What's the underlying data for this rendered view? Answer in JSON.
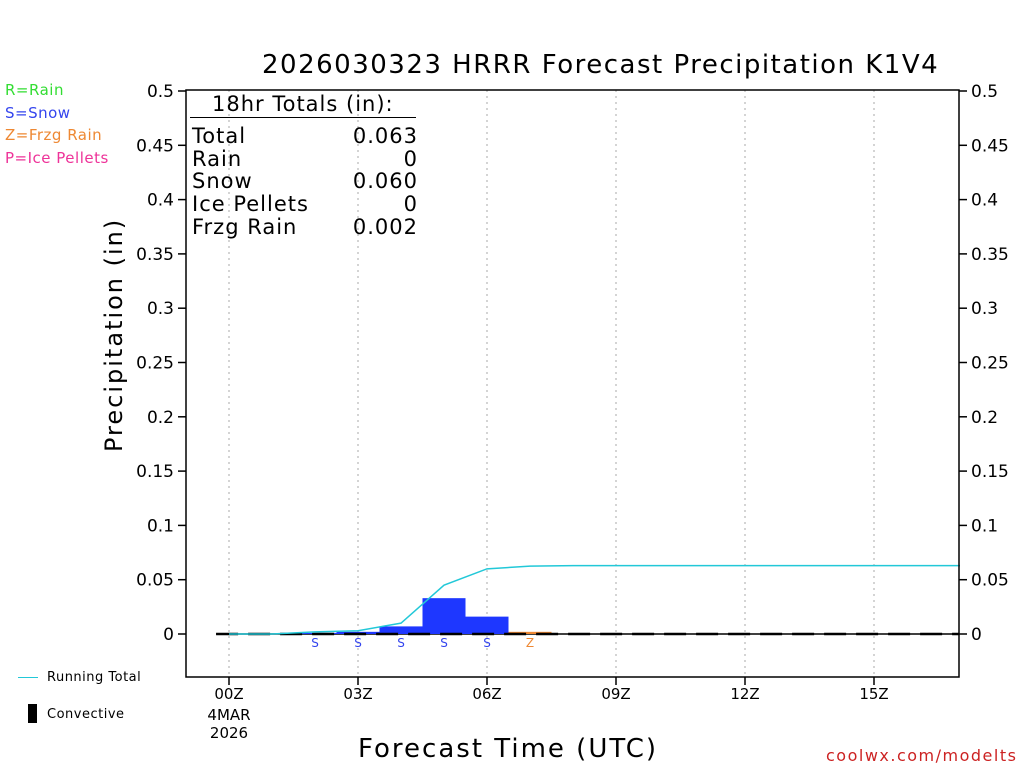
{
  "title": "2026030323 HRRR Forecast Precipitation K1V4",
  "ylabel": "Precipitation (in)",
  "xlabel": "Forecast Time (UTC)",
  "watermark": "coolwx.com/modelts",
  "ptype_legend": [
    {
      "label": "R=Rain",
      "color": "#33dd33"
    },
    {
      "label": "S=Snow",
      "color": "#3344ee"
    },
    {
      "label": "Z=Frzg Rain",
      "color": "#ee8833"
    },
    {
      "label": "P=Ice Pellets",
      "color": "#ee3399"
    }
  ],
  "bottom_legend": {
    "running_total": "Running Total",
    "convective": "Convective",
    "running_total_color": "#22c8d8",
    "convective_color": "#000000"
  },
  "totals": {
    "header": "18hr Totals (in):",
    "rows": [
      {
        "label": "Total",
        "value": "0.063"
      },
      {
        "label": "Rain",
        "value": "0"
      },
      {
        "label": "Snow",
        "value": "0.060"
      },
      {
        "label": "Ice Pellets",
        "value": "0"
      },
      {
        "label": "Frzg Rain",
        "value": "0.002"
      }
    ]
  },
  "chart_data": {
    "type": "bar",
    "title": "2026030323 HRRR Forecast Precipitation K1V4",
    "xlabel": "Forecast Time (UTC)",
    "ylabel": "Precipitation (in)",
    "xlim": [
      -1,
      17
    ],
    "ylim": [
      -0.04,
      0.5
    ],
    "yticks": [
      0,
      0.05,
      0.1,
      0.15,
      0.2,
      0.25,
      0.3,
      0.35,
      0.4,
      0.45,
      0.5
    ],
    "ytick_labels": [
      "0",
      "0.05",
      "0.1",
      "0.15",
      "0.2",
      "0.25",
      "0.3",
      "0.35",
      "0.4",
      "0.45",
      "0.5"
    ],
    "xticks": [
      {
        "hour": 0,
        "label": "00Z",
        "sub": [
          "4MAR",
          "2026"
        ]
      },
      {
        "hour": 3,
        "label": "03Z"
      },
      {
        "hour": 6,
        "label": "06Z"
      },
      {
        "hour": 9,
        "label": "09Z"
      },
      {
        "hour": 12,
        "label": "12Z"
      },
      {
        "hour": 15,
        "label": "15Z"
      }
    ],
    "grid": "vertical dotted",
    "bars": [
      {
        "hour": 2,
        "value": 0.001,
        "ptype": "S"
      },
      {
        "hour": 3,
        "value": 0.002,
        "ptype": "S"
      },
      {
        "hour": 4,
        "value": 0.007,
        "ptype": "S"
      },
      {
        "hour": 5,
        "value": 0.033,
        "ptype": "S"
      },
      {
        "hour": 6,
        "value": 0.016,
        "ptype": "S"
      },
      {
        "hour": 7,
        "value": 0.002,
        "ptype": "Z"
      }
    ],
    "running_total": {
      "name": "Running Total",
      "x": [
        0,
        1,
        2,
        3,
        4,
        5,
        6,
        7,
        8,
        9,
        10,
        11,
        12,
        13,
        14,
        15,
        16,
        17
      ],
      "y": [
        0,
        0,
        0.002,
        0.003,
        0.01,
        0.045,
        0.06,
        0.0625,
        0.063,
        0.063,
        0.063,
        0.063,
        0.063,
        0.063,
        0.063,
        0.063,
        0.063,
        0.063
      ]
    },
    "convective": {
      "name": "Convective",
      "values": []
    },
    "colors": {
      "S": "#1e37ff",
      "Z": "#ee8833",
      "R": "#33dd33",
      "P": "#ee3399"
    },
    "ptype_label_colors": {
      "S": "#3344ee",
      "Z": "#ee8833"
    }
  }
}
